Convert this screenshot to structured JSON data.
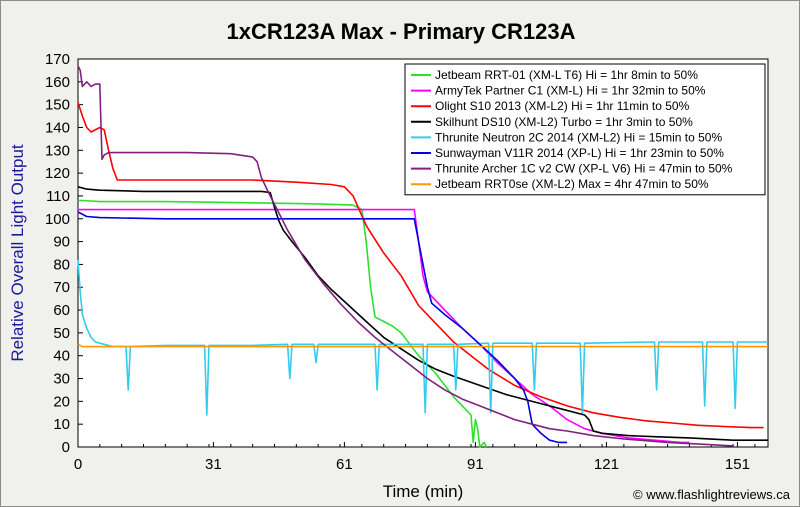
{
  "chart_data": {
    "type": "line",
    "title": "1xCR123A Max - Primary CR123A",
    "xlabel": "Time (min)",
    "ylabel": "Relative Overall Light Output",
    "xlim": [
      0,
      158
    ],
    "ylim": [
      0,
      170
    ],
    "xticks": [
      0,
      31,
      61,
      91,
      121,
      151
    ],
    "yticks": [
      0,
      10,
      20,
      30,
      40,
      50,
      60,
      70,
      80,
      90,
      100,
      110,
      120,
      130,
      140,
      150,
      160,
      170
    ],
    "grid": false,
    "legend_position": "top-right",
    "credit": "© www.flashlightreviews.ca",
    "series": [
      {
        "name": "Jetbeam RRT-01 (XM-L T6) Hi = 1hr 8min to 50%",
        "color": "#2ee02e",
        "points": [
          [
            0,
            108
          ],
          [
            1,
            108
          ],
          [
            5,
            107.5
          ],
          [
            20,
            107.5
          ],
          [
            40,
            107
          ],
          [
            55,
            106.5
          ],
          [
            63,
            106
          ],
          [
            65,
            104
          ],
          [
            66,
            90
          ],
          [
            67,
            70
          ],
          [
            68,
            57
          ],
          [
            70,
            55
          ],
          [
            72,
            53
          ],
          [
            74,
            50
          ],
          [
            76,
            45
          ],
          [
            78,
            40
          ],
          [
            82,
            32
          ],
          [
            86,
            22
          ],
          [
            88,
            18
          ],
          [
            89,
            16
          ],
          [
            90,
            14
          ],
          [
            90.5,
            2
          ],
          [
            91,
            12
          ],
          [
            91.5,
            8
          ],
          [
            92,
            0
          ],
          [
            93,
            2
          ],
          [
            93.5,
            0
          ]
        ]
      },
      {
        "name": "ArmyTek Partner C1 (XM-L) Hi = 1hr 32min to 50%",
        "color": "#ff00ff",
        "points": [
          [
            0,
            104
          ],
          [
            10,
            104
          ],
          [
            30,
            104
          ],
          [
            50,
            104
          ],
          [
            70,
            104
          ],
          [
            76,
            104
          ],
          [
            77,
            104
          ],
          [
            78,
            90
          ],
          [
            79,
            75
          ],
          [
            80,
            68
          ],
          [
            84,
            60
          ],
          [
            88,
            52
          ],
          [
            92,
            45
          ],
          [
            96,
            37
          ],
          [
            100,
            30
          ],
          [
            104,
            23
          ],
          [
            108,
            18
          ],
          [
            112,
            12
          ],
          [
            116,
            8
          ],
          [
            120,
            6
          ],
          [
            126,
            4
          ],
          [
            132,
            3
          ],
          [
            138,
            2
          ],
          [
            140,
            2
          ]
        ]
      },
      {
        "name": "Olight S10 2013 (XM-L2) Hi = 1hr 11min to 50%",
        "color": "#ff0000",
        "points": [
          [
            0,
            151
          ],
          [
            1,
            145
          ],
          [
            2,
            140
          ],
          [
            3,
            138
          ],
          [
            5,
            140
          ],
          [
            6,
            139
          ],
          [
            7,
            130
          ],
          [
            8,
            122
          ],
          [
            9,
            117
          ],
          [
            12,
            117
          ],
          [
            20,
            117
          ],
          [
            30,
            117
          ],
          [
            40,
            117
          ],
          [
            50,
            116
          ],
          [
            58,
            115
          ],
          [
            61,
            114
          ],
          [
            63,
            110
          ],
          [
            66,
            97
          ],
          [
            70,
            85
          ],
          [
            74,
            75
          ],
          [
            78,
            62
          ],
          [
            82,
            54
          ],
          [
            86,
            46
          ],
          [
            90,
            40
          ],
          [
            94,
            34
          ],
          [
            100,
            27
          ],
          [
            106,
            22
          ],
          [
            112,
            18
          ],
          [
            118,
            15
          ],
          [
            124,
            13
          ],
          [
            130,
            11.5
          ],
          [
            136,
            10.5
          ],
          [
            142,
            9.5
          ],
          [
            148,
            9
          ],
          [
            154,
            8.5
          ],
          [
            157,
            8.5
          ]
        ]
      },
      {
        "name": "Skilhunt DS10 (XM-L2) Turbo = 1hr 3min to 50%",
        "color": "#000000",
        "points": [
          [
            0,
            114
          ],
          [
            2,
            113
          ],
          [
            5,
            112.5
          ],
          [
            15,
            112
          ],
          [
            25,
            112
          ],
          [
            35,
            112
          ],
          [
            42,
            112
          ],
          [
            44,
            111.5
          ],
          [
            45,
            105
          ],
          [
            46,
            99
          ],
          [
            47,
            95
          ],
          [
            49,
            90
          ],
          [
            52,
            83
          ],
          [
            55,
            75
          ],
          [
            58,
            69
          ],
          [
            62,
            62
          ],
          [
            66,
            55
          ],
          [
            70,
            48
          ],
          [
            74,
            43
          ],
          [
            78,
            38
          ],
          [
            82,
            34
          ],
          [
            86,
            31
          ],
          [
            92,
            27
          ],
          [
            98,
            23
          ],
          [
            104,
            20
          ],
          [
            110,
            17
          ],
          [
            116,
            14
          ],
          [
            117,
            12
          ],
          [
            118,
            7
          ],
          [
            120,
            6
          ],
          [
            126,
            5
          ],
          [
            132,
            4.5
          ],
          [
            140,
            4
          ],
          [
            150,
            3
          ],
          [
            158,
            3
          ]
        ]
      },
      {
        "name": "Thrunite Neutron 2C 2014 (XM-L2) Hi = 15min to 50%",
        "color": "#33ccee",
        "points": [
          [
            0,
            82
          ],
          [
            0.5,
            68
          ],
          [
            1,
            58
          ],
          [
            2,
            52
          ],
          [
            3,
            48
          ],
          [
            4,
            46
          ],
          [
            6,
            45
          ],
          [
            8,
            44
          ],
          [
            10,
            44
          ],
          [
            11,
            44
          ],
          [
            11.5,
            25
          ],
          [
            12,
            44
          ],
          [
            20,
            44.5
          ],
          [
            29,
            44.5
          ],
          [
            29.5,
            14
          ],
          [
            30,
            44.5
          ],
          [
            40,
            44.5
          ],
          [
            48,
            45
          ],
          [
            48.5,
            30
          ],
          [
            49,
            45
          ],
          [
            52,
            45
          ],
          [
            54,
            45
          ],
          [
            54.5,
            37
          ],
          [
            55,
            45
          ],
          [
            68,
            45
          ],
          [
            68.5,
            25
          ],
          [
            69,
            45
          ],
          [
            79,
            45
          ],
          [
            79.5,
            15
          ],
          [
            80,
            45
          ],
          [
            86,
            45
          ],
          [
            86.5,
            25
          ],
          [
            87,
            45
          ],
          [
            94,
            45.5
          ],
          [
            94.5,
            15
          ],
          [
            95,
            45.5
          ],
          [
            104,
            45.5
          ],
          [
            104.5,
            25
          ],
          [
            105,
            45.5
          ],
          [
            115,
            45.5
          ],
          [
            115.5,
            15
          ],
          [
            116,
            45.5
          ],
          [
            132,
            46
          ],
          [
            132.5,
            25
          ],
          [
            133,
            46
          ],
          [
            143,
            46
          ],
          [
            143.5,
            18
          ],
          [
            144,
            46
          ],
          [
            150,
            46
          ],
          [
            150.5,
            17
          ],
          [
            151,
            46
          ],
          [
            158,
            46
          ]
        ]
      },
      {
        "name": "Sunwayman V11R 2014 (XP-L) Hi = 1hr 23min to 50%",
        "color": "#0000e0",
        "points": [
          [
            0,
            103
          ],
          [
            2,
            101
          ],
          [
            5,
            100.5
          ],
          [
            20,
            100
          ],
          [
            40,
            100
          ],
          [
            60,
            100
          ],
          [
            76,
            100
          ],
          [
            77,
            100
          ],
          [
            78,
            90
          ],
          [
            79,
            80
          ],
          [
            80,
            70
          ],
          [
            81,
            63
          ],
          [
            84,
            58
          ],
          [
            88,
            52
          ],
          [
            92,
            45
          ],
          [
            96,
            38
          ],
          [
            100,
            30
          ],
          [
            102,
            25
          ],
          [
            103,
            20
          ],
          [
            104,
            10
          ],
          [
            106,
            6
          ],
          [
            108,
            3
          ],
          [
            110,
            2
          ],
          [
            112,
            2
          ]
        ]
      },
      {
        "name": "Thrunite Archer 1C v2 CW (XP-L V6) Hi = 47min to 50%",
        "color": "#802080",
        "points": [
          [
            0,
            167
          ],
          [
            0.5,
            165
          ],
          [
            1,
            158
          ],
          [
            2,
            160
          ],
          [
            3,
            158
          ],
          [
            4,
            159
          ],
          [
            5,
            159
          ],
          [
            5.5,
            126
          ],
          [
            6,
            128
          ],
          [
            7,
            129
          ],
          [
            15,
            129
          ],
          [
            25,
            129
          ],
          [
            35,
            128.5
          ],
          [
            40,
            127
          ],
          [
            41,
            125
          ],
          [
            42,
            118
          ],
          [
            44,
            110
          ],
          [
            48,
            95
          ],
          [
            52,
            82
          ],
          [
            56,
            72
          ],
          [
            60,
            63
          ],
          [
            64,
            55
          ],
          [
            68,
            48
          ],
          [
            72,
            42
          ],
          [
            76,
            36
          ],
          [
            80,
            30
          ],
          [
            84,
            25
          ],
          [
            88,
            21
          ],
          [
            92,
            18
          ],
          [
            96,
            15
          ],
          [
            100,
            12
          ],
          [
            104,
            10
          ],
          [
            108,
            8
          ],
          [
            112,
            7
          ],
          [
            118,
            5
          ],
          [
            125,
            3.5
          ],
          [
            135,
            2
          ],
          [
            145,
            1
          ],
          [
            150,
            0.5
          ]
        ]
      },
      {
        "name": "Jetbeam RRT0se (XM-L2) Max = 4hr 47min to 50%",
        "color": "#ff9900",
        "points": [
          [
            0,
            45
          ],
          [
            1,
            44
          ],
          [
            5,
            44
          ],
          [
            20,
            44
          ],
          [
            40,
            44
          ],
          [
            60,
            44
          ],
          [
            80,
            44
          ],
          [
            100,
            44
          ],
          [
            120,
            44
          ],
          [
            140,
            44
          ],
          [
            158,
            44
          ]
        ]
      }
    ]
  }
}
